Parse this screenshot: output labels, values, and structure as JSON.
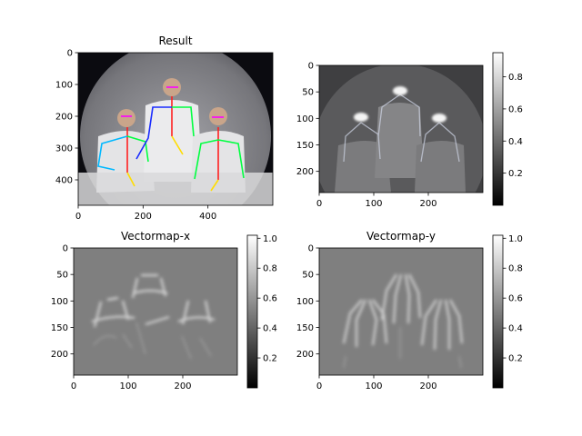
{
  "chart_data": [
    {
      "id": "result",
      "type": "image",
      "title": "Result",
      "xlim": [
        0,
        600
      ],
      "ylim": [
        0,
        480
      ],
      "xticks": [
        0,
        200,
        400
      ],
      "yticks": [
        0,
        100,
        200,
        300,
        400
      ],
      "colors": {
        "sky": "#0b0b10",
        "moon": "#8a8a8f",
        "suit": "#e6e6e6",
        "skeleton": [
          "#ff0000",
          "#00c0ff",
          "#00ff40",
          "#ffdd00",
          "#1a2cff",
          "#ff00ff"
        ]
      }
    },
    {
      "id": "overlay",
      "type": "heatmap",
      "title": "",
      "xlim": [
        0,
        300
      ],
      "ylim": [
        0,
        240
      ],
      "xticks": [
        0,
        100,
        200
      ],
      "yticks": [
        0,
        50,
        100,
        150,
        200
      ],
      "colorbar": {
        "ticks": [
          0.2,
          0.4,
          0.6,
          0.8
        ],
        "range": [
          0,
          0.95
        ]
      }
    },
    {
      "id": "vectormap-x",
      "type": "heatmap",
      "title": "Vectormap-x",
      "xlim": [
        0,
        300
      ],
      "ylim": [
        0,
        240
      ],
      "xticks": [
        0,
        100,
        200
      ],
      "yticks": [
        0,
        50,
        100,
        150,
        200
      ],
      "colorbar": {
        "ticks": [
          0.2,
          0.4,
          0.6,
          0.8,
          1.0
        ],
        "tick_labels": [
          "0.2",
          "0.4",
          "0.6",
          "0.8",
          "1.0"
        ],
        "range": [
          0,
          1.02
        ]
      }
    },
    {
      "id": "vectormap-y",
      "type": "heatmap",
      "title": "Vectormap-y",
      "xlim": [
        0,
        300
      ],
      "ylim": [
        0,
        240
      ],
      "xticks": [
        0,
        100,
        200
      ],
      "yticks": [
        0,
        50,
        100,
        150,
        200
      ],
      "colorbar": {
        "ticks": [
          0.2,
          0.4,
          0.6,
          0.8,
          1.0
        ],
        "tick_labels": [
          "0.2",
          "0.4",
          "0.6",
          "0.8",
          "1.0"
        ],
        "range": [
          0,
          1.02
        ]
      }
    }
  ]
}
